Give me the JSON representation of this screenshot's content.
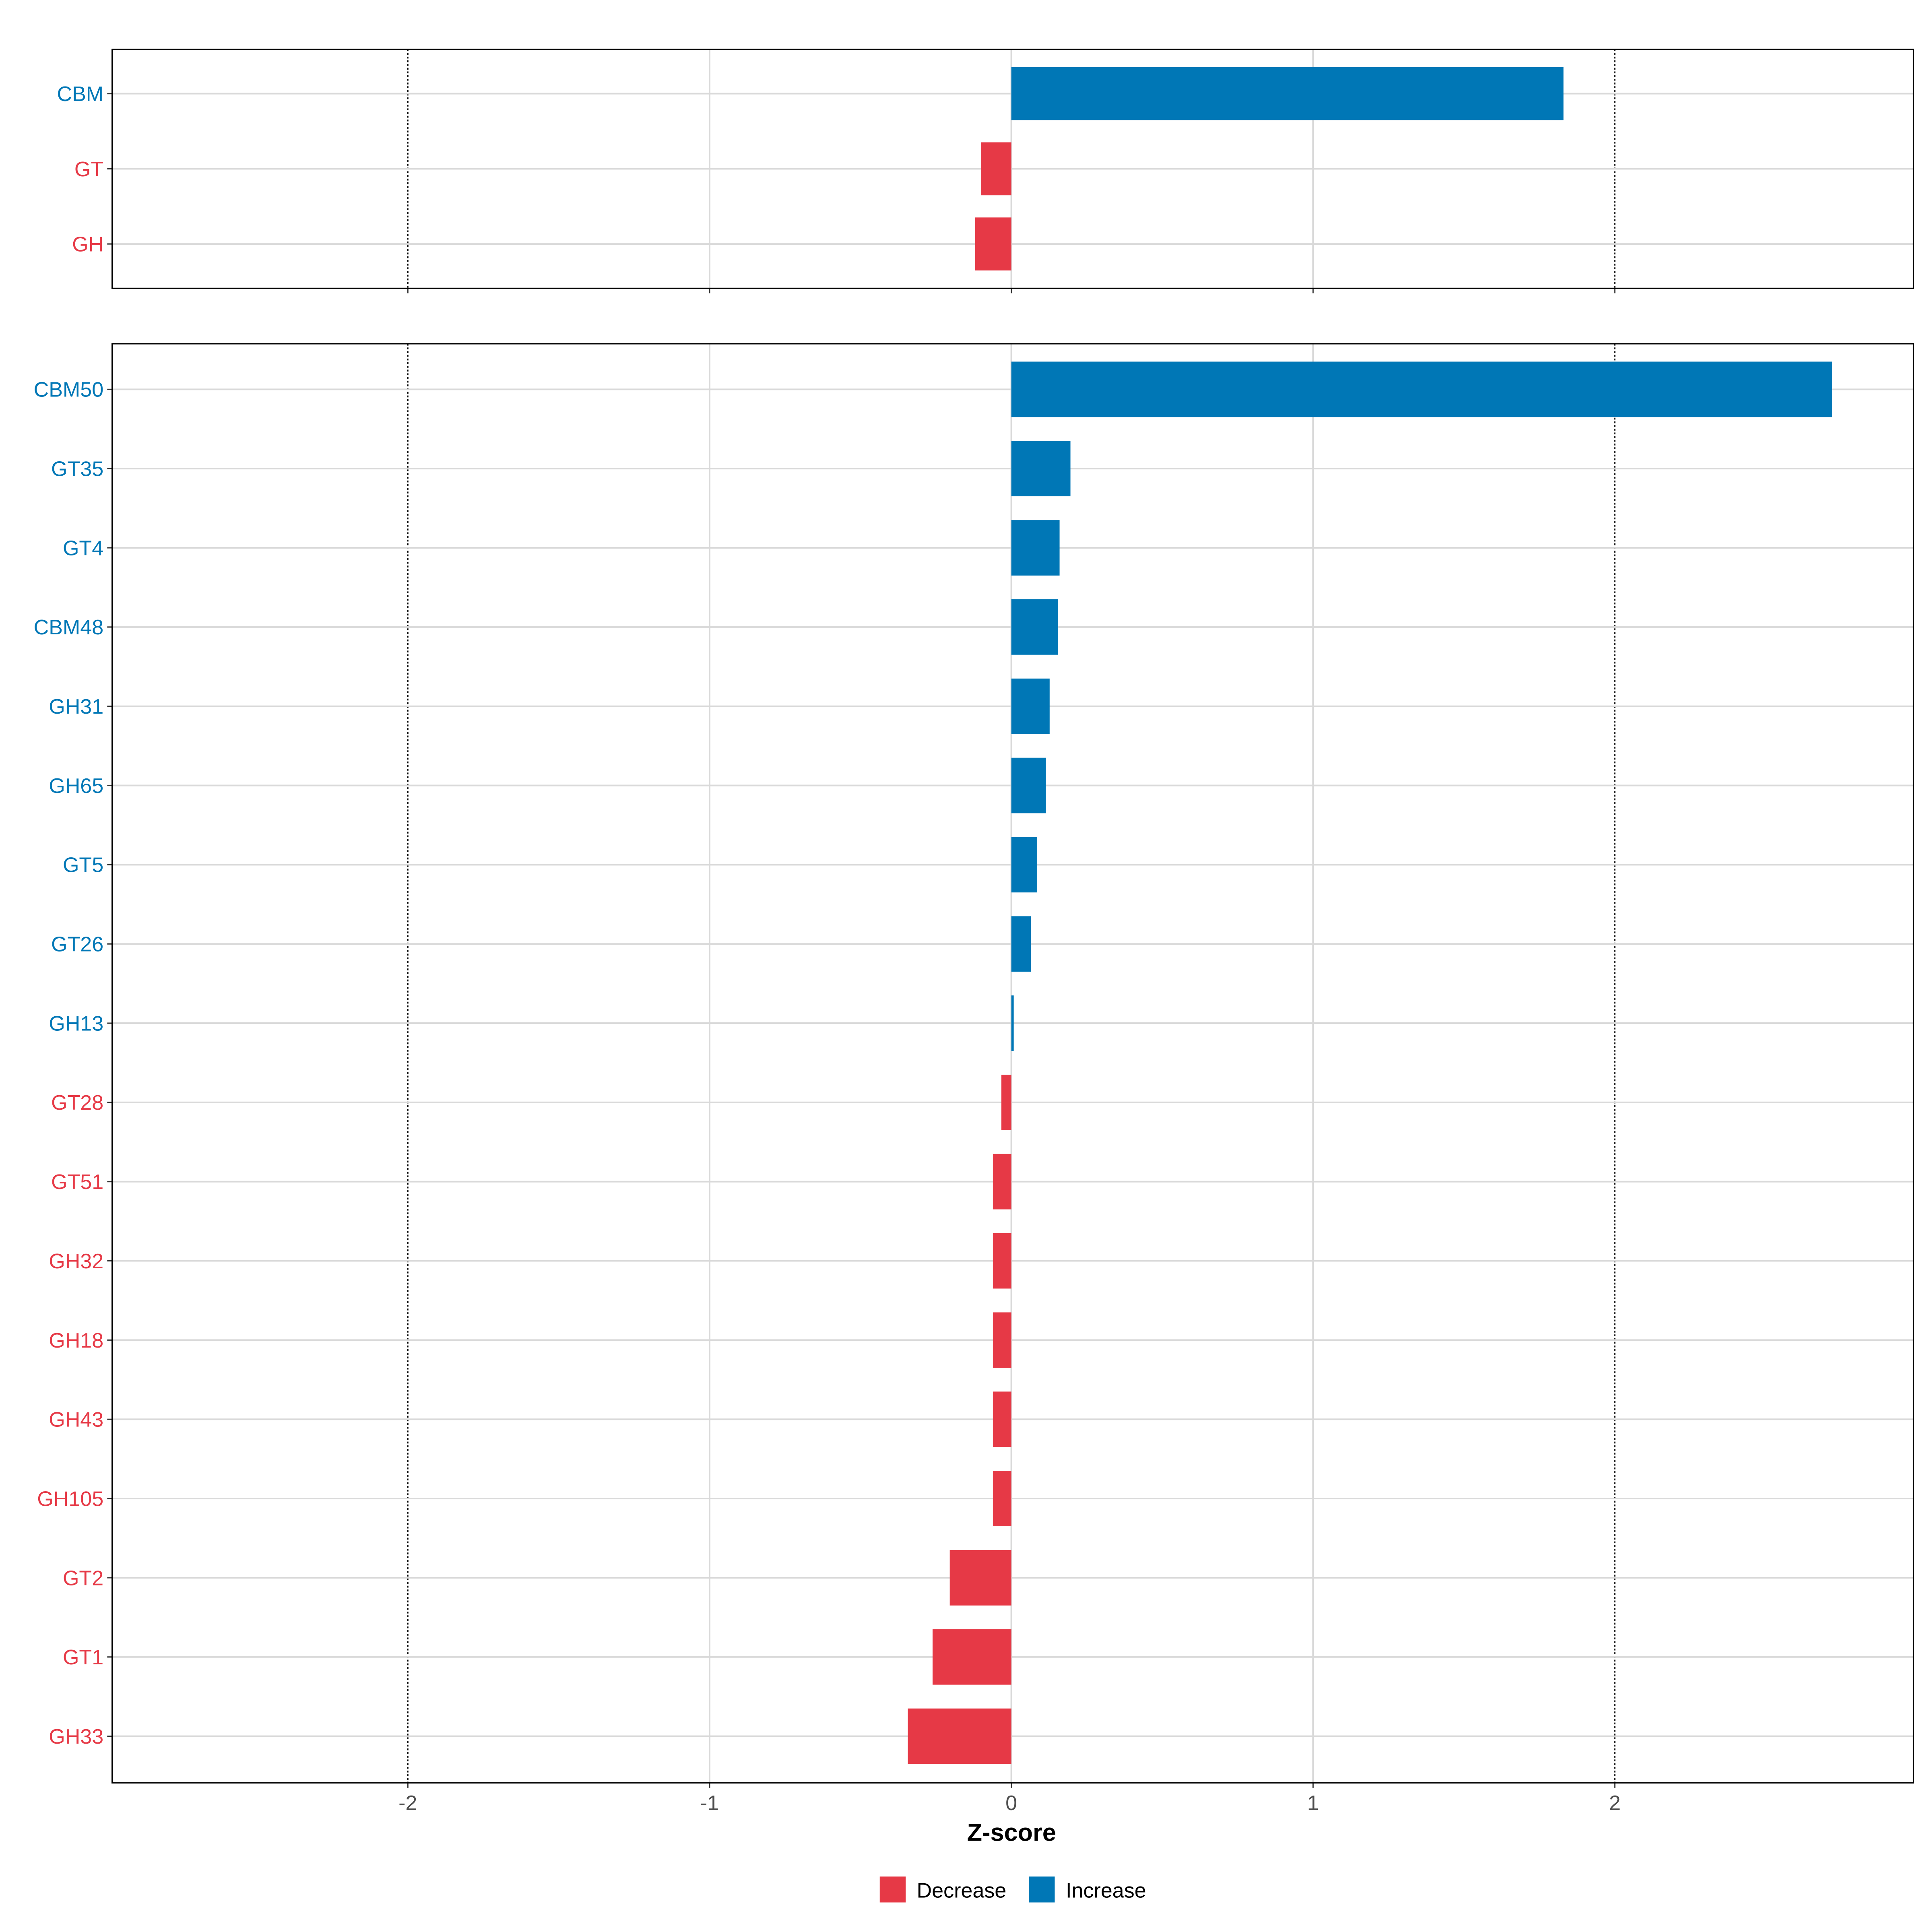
{
  "chart_data": [
    {
      "type": "bar",
      "orientation": "horizontal",
      "panel": "top",
      "categories": [
        "CBM",
        "GT",
        "GH"
      ],
      "values": [
        1.83,
        -0.1,
        -0.12
      ],
      "xlim": [
        -2.98,
        2.99
      ]
    },
    {
      "type": "bar",
      "orientation": "horizontal",
      "panel": "bottom",
      "categories": [
        "CBM50",
        "GT35",
        "GT4",
        "CBM48",
        "GH31",
        "GH65",
        "GT5",
        "GT26",
        "GH13",
        "GT28",
        "GT51",
        "GH32",
        "GH18",
        "GH43",
        "GH105",
        "GT2",
        "GT1",
        "GH33"
      ],
      "values": [
        2.72,
        0.196,
        0.16,
        0.155,
        0.127,
        0.114,
        0.086,
        0.065,
        0.008,
        -0.033,
        -0.061,
        -0.061,
        -0.061,
        -0.061,
        -0.061,
        -0.204,
        -0.261,
        -0.343
      ],
      "xlim": [
        -2.98,
        2.99
      ]
    }
  ],
  "xaxis": {
    "label": "Z-score",
    "ticks": [
      -2,
      -1,
      0,
      1,
      2
    ],
    "tick_labels": [
      "-2",
      "-1",
      "0",
      "1",
      "2"
    ],
    "dotted_reference_lines": [
      -2,
      2
    ]
  },
  "legend": {
    "placement": "bottom",
    "items": [
      {
        "label": "Decrease",
        "color": "#E63946"
      },
      {
        "label": "Increase",
        "color": "#0077B6"
      }
    ]
  },
  "colors": {
    "decrease": "#E63946",
    "increase": "#0077B6",
    "grid": "#D9D9D9"
  }
}
